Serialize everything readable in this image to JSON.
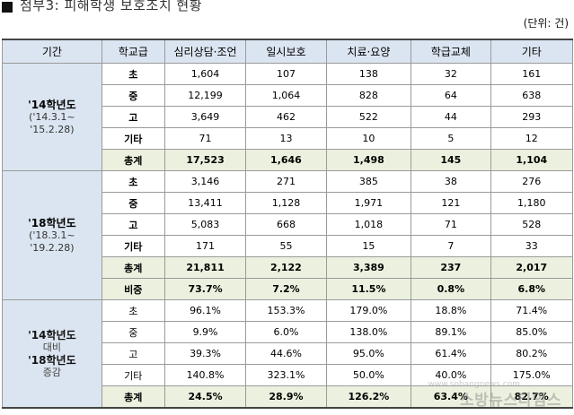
{
  "title": "첨부3: 피해학생 보호조치 현황",
  "unit": "(단위: 건)",
  "columns": [
    "기간",
    "학교급",
    "심리상담·조언",
    "일시보호",
    "치료·요양",
    "학급교체",
    "기타"
  ],
  "block1": {
    "period": [
      "'14학년도",
      "('14.3.1~",
      "'15.2.28)"
    ],
    "rows": [
      {
        "level": "초",
        "values": [
          "1,604",
          "107",
          "138",
          "32",
          "161"
        ]
      },
      {
        "level": "중",
        "values": [
          "12,199",
          "1,064",
          "828",
          "64",
          "638"
        ]
      },
      {
        "level": "고",
        "values": [
          "3,649",
          "462",
          "522",
          "44",
          "293"
        ]
      },
      {
        "level": "기타",
        "values": [
          "71",
          "13",
          "10",
          "5",
          "12"
        ]
      },
      {
        "level": "총계",
        "values": [
          "17,523",
          "1,646",
          "1,498",
          "145",
          "1,104"
        ]
      }
    ]
  },
  "block2": {
    "period": [
      "'18학년도",
      "('18.3.1~",
      "'19.2.28)"
    ],
    "rows": [
      {
        "level": "초",
        "values": [
          "3,146",
          "271",
          "385",
          "38",
          "276"
        ]
      },
      {
        "level": "중",
        "values": [
          "13,411",
          "1,128",
          "1,971",
          "121",
          "1,180"
        ]
      },
      {
        "level": "고",
        "values": [
          "5,083",
          "668",
          "1,018",
          "71",
          "528"
        ]
      },
      {
        "level": "기타",
        "values": [
          "171",
          "55",
          "15",
          "7",
          "33"
        ]
      },
      {
        "level": "총계",
        "values": [
          "21,811",
          "2,122",
          "3,389",
          "237",
          "2,017"
        ]
      },
      {
        "level": "비중",
        "values": [
          "73.7%",
          "7.2%",
          "11.5%",
          "0.8%",
          "6.8%"
        ]
      }
    ]
  },
  "block3": {
    "period": [
      "'14학년도",
      "대비",
      "'18학년도",
      "증감"
    ],
    "rows": [
      {
        "level": "초",
        "values": [
          "96.1%",
          "153.3%",
          "179.0%",
          "18.8%",
          "71.4%"
        ]
      },
      {
        "level": "중",
        "values": [
          "9.9%",
          "6.0%",
          "138.0%",
          "89.1%",
          "85.0%"
        ]
      },
      {
        "level": "고",
        "values": [
          "39.3%",
          "44.6%",
          "95.0%",
          "61.4%",
          "80.2%"
        ]
      },
      {
        "level": "기타",
        "values": [
          "140.8%",
          "323.1%",
          "50.0%",
          "40.0%",
          "175.0%"
        ]
      },
      {
        "level": "총계",
        "values": [
          "24.5%",
          "28.9%",
          "126.2%",
          "63.4%",
          "82.7%"
        ]
      }
    ]
  },
  "watermark": {
    "sub": "www.sobangnews.com",
    "main": "소방뉴스타임스"
  }
}
